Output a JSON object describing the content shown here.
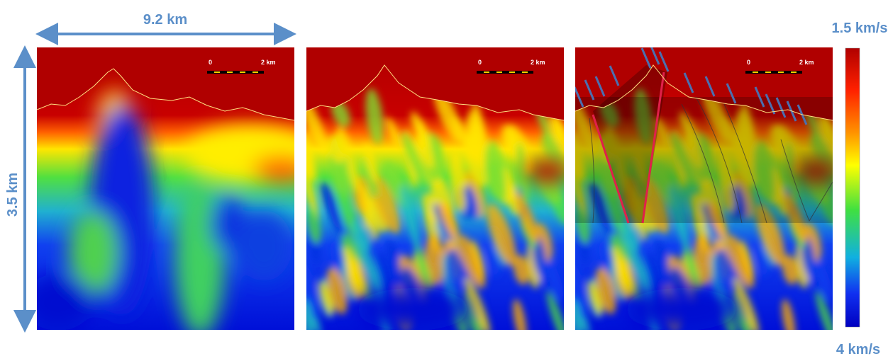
{
  "width_label": "9.2 km",
  "depth_label": "3.5 km",
  "colorbar": {
    "top": "1.5 km/s",
    "bottom": "4 km/s"
  },
  "panels": [
    {
      "scale_bar": {
        "start": "0",
        "end": "2 km"
      }
    },
    {
      "scale_bar": {
        "start": "0",
        "end": "2 km"
      }
    },
    {
      "scale_bar": {
        "start": "0",
        "end": "2 km"
      }
    }
  ]
}
